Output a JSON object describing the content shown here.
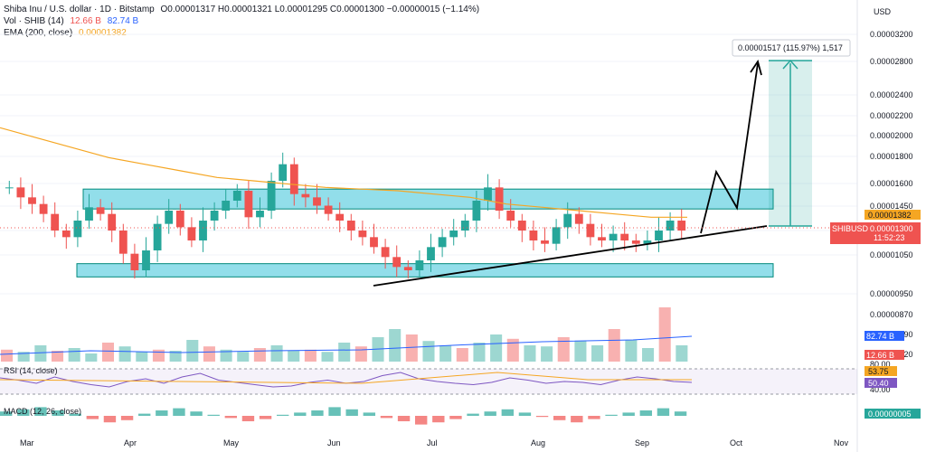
{
  "legend": {
    "title": "Shiba Inu / U.S. dollar · 1D · Bitstamp",
    "ohlc": "O0.00001317  H0.00001321  L0.00001295  C0.00001300  −0.00000015 (−1.14%)",
    "vol_label": "Vol · SHIB (14)",
    "vol_value_1": "12.66 B",
    "vol_value_2": "82.74 B",
    "ema_label": "EMA (200, close)",
    "ema_value": "0.00001382"
  },
  "currency": "USD",
  "measure_label": "0.00001517 (115.97%) 1,517",
  "rsi_label": "RSI (14, close)",
  "rsi_value": "50.40",
  "rsi_ma_value": "53.75",
  "macd_label": "MACD (12, 26, close)",
  "colors": {
    "up": "#26a69a",
    "down": "#ef5350",
    "ema": "#f5a623",
    "zone_fill": "#7fd8e6",
    "zone_stroke": "#00897b",
    "rsi": "#7e57c2",
    "volma": "#2962ff"
  },
  "chart_data": {
    "type": "candlestick",
    "x_labels": [
      "Mar",
      "Apr",
      "May",
      "Jun",
      "Jul",
      "Aug",
      "Sep",
      "Oct",
      "Nov"
    ],
    "y_ticks": [
      "0.00003200",
      "0.00002800",
      "0.00002400",
      "0.00002200",
      "0.00002000",
      "0.00001800",
      "0.00001600",
      "0.00001450",
      "0.00001200",
      "0.00001050",
      "0.00000950",
      "0.00000870",
      "0.00000790",
      "0.00000720"
    ],
    "price_labels": [
      {
        "text": "0.00001382",
        "color": "#f5a623"
      },
      {
        "text": "SHIBUSD",
        "color": "#ef5350"
      },
      {
        "text": "0.00001300",
        "color": "#ef5350"
      },
      {
        "text": "11:52:23",
        "color": "#ef5350"
      }
    ],
    "volume_labels": [
      {
        "text": "82.74 B",
        "color": "#2962ff"
      },
      {
        "text": "12.66 B",
        "color": "#ef5350"
      }
    ],
    "rsi_labels": [
      {
        "text": "53.75",
        "color": "#f5a623"
      },
      {
        "text": "50.40",
        "color": "#7e57c2"
      }
    ],
    "rsi_ticks": [
      "80.00",
      "40.00"
    ],
    "macd_label_value": "0.00000005",
    "close_trend": [
      1.56,
      1.5,
      1.46,
      1.4,
      1.3,
      1.26,
      1.36,
      1.44,
      1.4,
      1.3,
      1.16,
      1.06,
      1.18,
      1.34,
      1.42,
      1.32,
      1.24,
      1.36,
      1.42,
      1.48,
      1.54,
      1.38,
      1.42,
      1.6,
      1.7,
      1.52,
      1.5,
      1.45,
      1.4,
      1.36,
      1.3,
      1.26,
      1.2,
      1.14,
      1.08,
      1.06,
      1.12,
      1.2,
      1.26,
      1.3,
      1.36,
      1.48,
      1.56,
      1.42,
      1.36,
      1.3,
      1.24,
      1.22,
      1.32,
      1.4,
      1.34,
      1.26,
      1.24,
      1.28,
      1.24,
      1.22,
      1.24,
      1.3,
      1.36,
      1.3
    ],
    "ema": [
      1.92,
      1.86,
      1.8,
      1.74,
      1.7,
      1.66,
      1.62,
      1.6,
      1.58,
      1.56,
      1.55,
      1.54,
      1.52,
      1.5,
      1.46,
      1.44,
      1.42,
      1.4,
      1.38,
      1.38
    ],
    "zones": [
      {
        "top": 1.55,
        "bottom": 1.43
      },
      {
        "top": 1.1,
        "bottom": 1.02
      }
    ],
    "rsi": [
      60,
      55,
      48,
      62,
      52,
      45,
      40,
      52,
      58,
      48,
      62,
      70,
      55,
      50,
      45,
      40,
      42,
      50,
      55,
      48,
      52,
      65,
      72,
      58,
      52,
      48,
      45,
      50,
      60,
      55,
      48,
      52,
      50,
      45,
      55,
      62,
      58,
      52,
      50
    ],
    "volume": [
      0.22,
      0.18,
      0.3,
      0.2,
      0.25,
      0.15,
      0.35,
      0.28,
      0.18,
      0.22,
      0.2,
      0.4,
      0.28,
      0.22,
      0.18,
      0.25,
      0.3,
      0.2,
      0.22,
      0.18,
      0.35,
      0.28,
      0.45,
      0.6,
      0.5,
      0.38,
      0.3,
      0.25,
      0.35,
      0.5,
      0.42,
      0.3,
      0.28,
      0.45,
      0.38,
      0.3,
      0.6,
      0.4,
      0.25,
      1.0,
      0.3
    ],
    "macd": [
      0.4,
      0.6,
      0.8,
      0.5,
      0.2,
      -0.3,
      -0.6,
      -0.4,
      0.2,
      0.5,
      0.7,
      0.4,
      0.1,
      -0.2,
      -0.5,
      -0.3,
      0.1,
      0.3,
      0.5,
      0.8,
      0.6,
      0.3,
      -0.2,
      -0.5,
      -0.8,
      -0.6,
      -0.3,
      0.2,
      0.4,
      0.6,
      0.3,
      -0.1,
      -0.4,
      -0.6,
      -0.3,
      0.1,
      0.3,
      0.5,
      0.7,
      0.4
    ],
    "projection_arrow": "up"
  }
}
